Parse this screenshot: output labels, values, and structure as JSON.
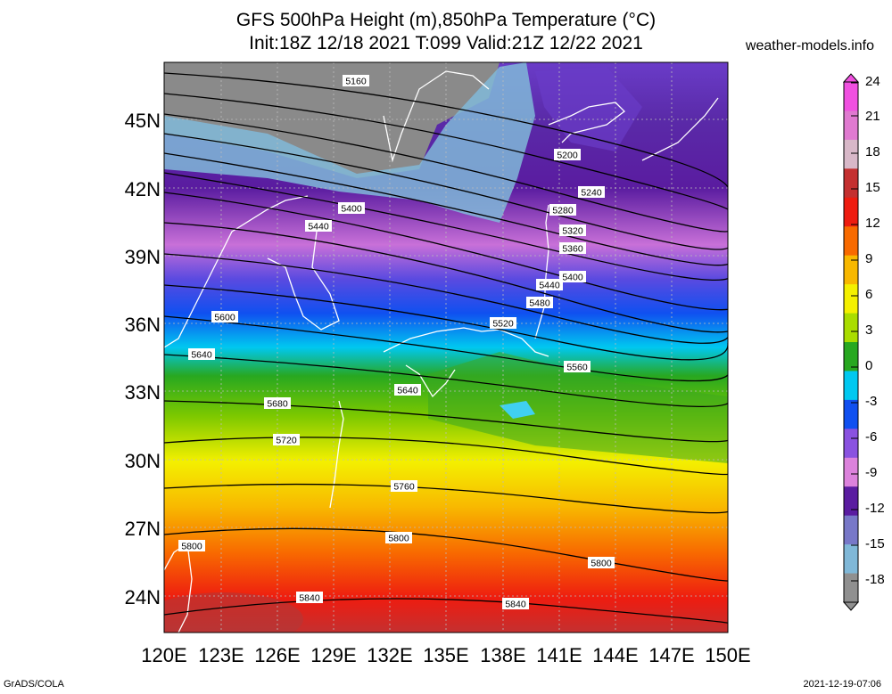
{
  "title_line1": "GFS 500hPa Height (m),850hPa Temperature (°C)",
  "title_line2": "Init:18Z 12/18 2021 T:099 Valid:21Z 12/22 2021",
  "source": "weather-models.info",
  "footer_left": "GrADS/COLA",
  "footer_right": "2021-12-19-07:06",
  "map": {
    "lon_range": [
      120,
      150
    ],
    "lat_range": [
      22.5,
      48
    ],
    "lat_labels": [
      "45N",
      "42N",
      "39N",
      "36N",
      "33N",
      "30N",
      "27N",
      "24N"
    ],
    "lon_labels": [
      "120E",
      "123E",
      "126E",
      "129E",
      "132E",
      "135E",
      "138E",
      "141E",
      "144E",
      "147E",
      "150E"
    ]
  },
  "colorbar": {
    "labels": [
      "24",
      "21",
      "18",
      "15",
      "12",
      "9",
      "6",
      "3",
      "0",
      "-3",
      "-6",
      "-9",
      "-12",
      "-15",
      "-18"
    ],
    "colors": [
      "#f050e0",
      "#e07ad0",
      "#d8b8c8",
      "#c43030",
      "#ee1c10",
      "#f86a00",
      "#f8b800",
      "#f4f000",
      "#aadd00",
      "#28a820",
      "#00c8f0",
      "#1050f0",
      "#8a52e0",
      "#dc82dc",
      "#5a1ca0",
      "#7878c8",
      "#80b8d8",
      "#909090"
    ]
  },
  "contours": [
    {
      "label": "5160"
    },
    {
      "label": "5200"
    },
    {
      "label": "5240"
    },
    {
      "label": "5280"
    },
    {
      "label": "5320"
    },
    {
      "label": "5360"
    },
    {
      "label": "5400"
    },
    {
      "label": "5400"
    },
    {
      "label": "5440"
    },
    {
      "label": "5440"
    },
    {
      "label": "5480"
    },
    {
      "label": "5520"
    },
    {
      "label": "5560"
    },
    {
      "label": "5600"
    },
    {
      "label": "5640"
    },
    {
      "label": "5640"
    },
    {
      "label": "5680"
    },
    {
      "label": "5720"
    },
    {
      "label": "5760"
    },
    {
      "label": "5800"
    },
    {
      "label": "5800"
    },
    {
      "label": "5800"
    },
    {
      "label": "5840"
    },
    {
      "label": "5840"
    }
  ]
}
